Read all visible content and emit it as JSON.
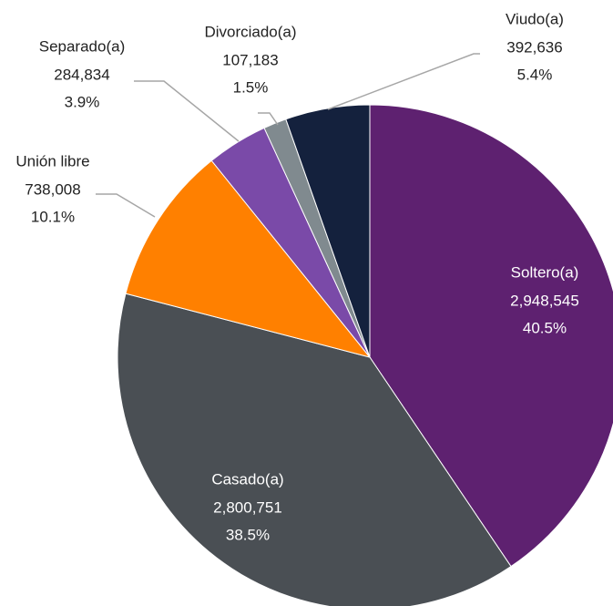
{
  "chart_data": {
    "type": "pie",
    "categories": [
      "Soltero(a)",
      "Casado(a)",
      "Unión libre",
      "Separado(a)",
      "Divorciado(a)",
      "Viudo(a)"
    ],
    "values": [
      2948545,
      2800751,
      738008,
      284834,
      107183,
      392636
    ],
    "value_labels": [
      "2,948,545",
      "2,800,751",
      "738,008",
      "284,834",
      "107,183",
      "392,636"
    ],
    "percent_labels": [
      "40.5%",
      "38.5%",
      "10.1%",
      "3.9%",
      "1.5%",
      "5.4%"
    ],
    "colors": [
      "#5e2170",
      "#4a4f54",
      "#ff8000",
      "#7a4aa8",
      "#808a8f",
      "#14213d"
    ]
  }
}
